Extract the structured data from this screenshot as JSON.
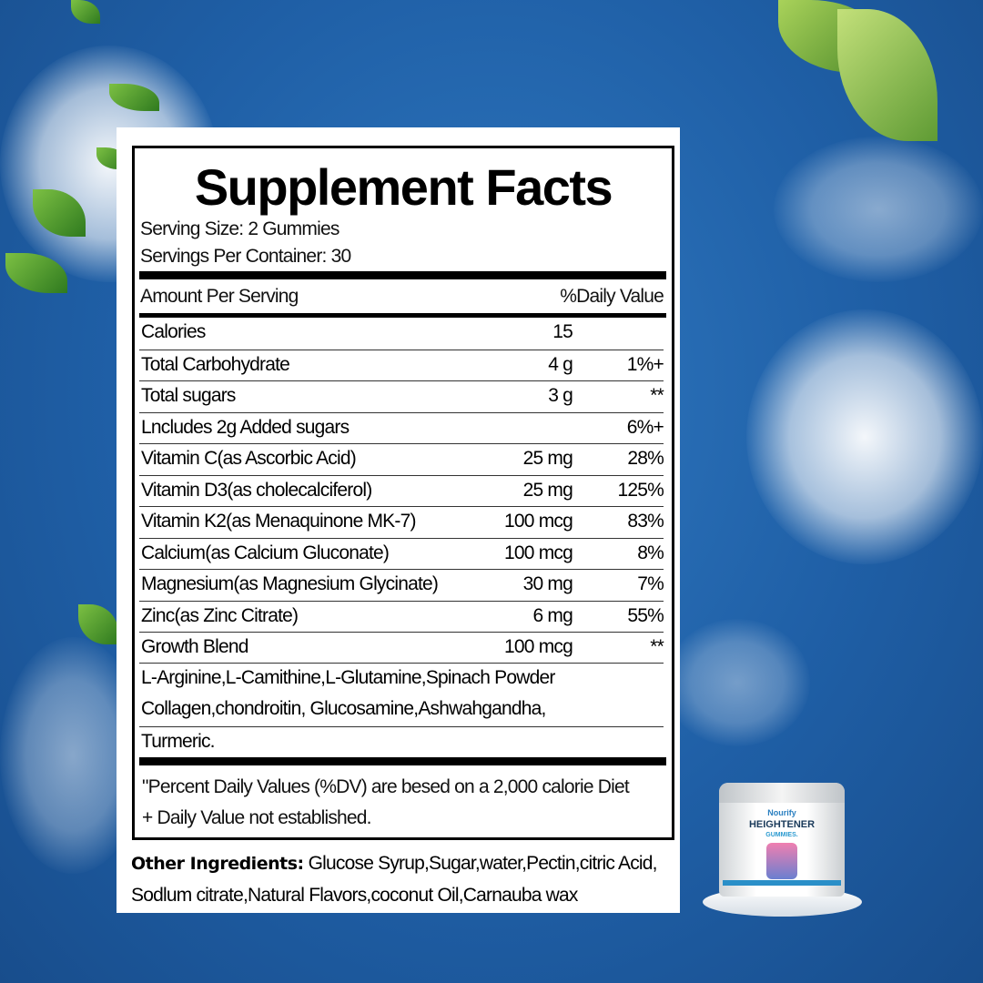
{
  "label": {
    "title": "Supplement Facts",
    "serving_size": "Serving Size: 2 Gummies",
    "servings_per_container": "Servings Per Container: 30",
    "header_left": "Amount Per Serving",
    "header_right": "%Daily Value",
    "rows": [
      {
        "name": "Calories",
        "amount": "15",
        "dv": ""
      },
      {
        "name": "Total Carbohydrate",
        "amount": "4 g",
        "dv": "1%+"
      },
      {
        "name": "Total sugars",
        "amount": "3 g",
        "dv": "**"
      },
      {
        "name": "Lncludes 2g Added sugars",
        "amount": "",
        "dv": "6%+"
      },
      {
        "name": "Vitamin C(as Ascorbic Acid)",
        "amount": "25 mg",
        "dv": "28%"
      },
      {
        "name": "Vitamin D3(as cholecalciferol)",
        "amount": "25 mg",
        "dv": "125%"
      },
      {
        "name": "Vitamin K2(as Menaquinone MK-7)",
        "amount": "100 mcg",
        "dv": "83%"
      },
      {
        "name": "Calcium(as Calcium Gluconate)",
        "amount": "100 mcg",
        "dv": "8%"
      },
      {
        "name": "Magnesium(as Magnesium Glycinate)",
        "amount": "30 mg",
        "dv": "7%"
      },
      {
        "name": "Zinc(as Zinc Citrate)",
        "amount": "6 mg",
        "dv": "55%"
      },
      {
        "name": "Growth Blend",
        "amount": "100 mcg",
        "dv": "**"
      }
    ],
    "blend_line1": "L-Arginine,L-Camithine,L-Glutamine,Spinach Powder",
    "blend_line2": "Collagen,chondroitin, Glucosamine,Ashwahgandha,",
    "blend_line3": "Turmeric.",
    "footnote1": "\"Percent Daily Values (%DV) are besed on a 2,000 calorie Diet",
    "footnote2": "+ Daily Value not established.",
    "other_label": "Other Ingredients:",
    "other_line1": " Glucose Syrup,Sugar,water,Pectin,citric Acid,",
    "other_line2": "Sodlum citrate,Natural Flavors,coconut Oil,Carnauba wax"
  },
  "product": {
    "brand": "Nourify",
    "name": "HEIGHTENER",
    "sub": "GUMMIES."
  },
  "colors": {
    "sky": "#1f5fa6",
    "leaf": "#4a9a2a",
    "brand_blue": "#2a7fc0"
  }
}
